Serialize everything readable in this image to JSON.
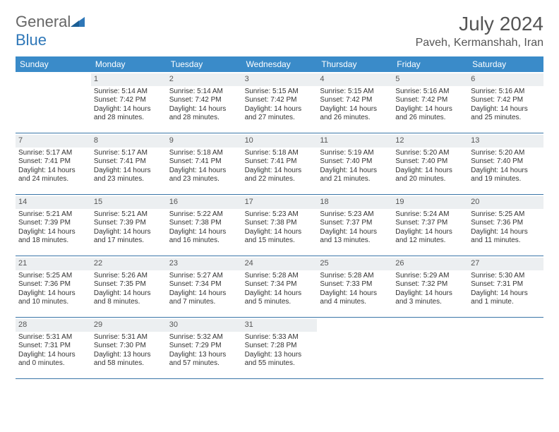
{
  "brand": {
    "part1": "General",
    "part2": "Blue"
  },
  "title": "July 2024",
  "location": "Paveh, Kermanshah, Iran",
  "colors": {
    "header_bg": "#3a8bc9",
    "header_text": "#ffffff",
    "strip_bg": "#eceff1",
    "row_divider": "#3a76a8",
    "text": "#333333",
    "brand_blue": "#2e77b8",
    "brand_gray": "#666666"
  },
  "days_of_week": [
    "Sunday",
    "Monday",
    "Tuesday",
    "Wednesday",
    "Thursday",
    "Friday",
    "Saturday"
  ],
  "weeks": [
    [
      {
        "num": "",
        "sunrise": "",
        "sunset": "",
        "daylight1": "",
        "daylight2": ""
      },
      {
        "num": "1",
        "sunrise": "Sunrise: 5:14 AM",
        "sunset": "Sunset: 7:42 PM",
        "daylight1": "Daylight: 14 hours",
        "daylight2": "and 28 minutes."
      },
      {
        "num": "2",
        "sunrise": "Sunrise: 5:14 AM",
        "sunset": "Sunset: 7:42 PM",
        "daylight1": "Daylight: 14 hours",
        "daylight2": "and 28 minutes."
      },
      {
        "num": "3",
        "sunrise": "Sunrise: 5:15 AM",
        "sunset": "Sunset: 7:42 PM",
        "daylight1": "Daylight: 14 hours",
        "daylight2": "and 27 minutes."
      },
      {
        "num": "4",
        "sunrise": "Sunrise: 5:15 AM",
        "sunset": "Sunset: 7:42 PM",
        "daylight1": "Daylight: 14 hours",
        "daylight2": "and 26 minutes."
      },
      {
        "num": "5",
        "sunrise": "Sunrise: 5:16 AM",
        "sunset": "Sunset: 7:42 PM",
        "daylight1": "Daylight: 14 hours",
        "daylight2": "and 26 minutes."
      },
      {
        "num": "6",
        "sunrise": "Sunrise: 5:16 AM",
        "sunset": "Sunset: 7:42 PM",
        "daylight1": "Daylight: 14 hours",
        "daylight2": "and 25 minutes."
      }
    ],
    [
      {
        "num": "7",
        "sunrise": "Sunrise: 5:17 AM",
        "sunset": "Sunset: 7:41 PM",
        "daylight1": "Daylight: 14 hours",
        "daylight2": "and 24 minutes."
      },
      {
        "num": "8",
        "sunrise": "Sunrise: 5:17 AM",
        "sunset": "Sunset: 7:41 PM",
        "daylight1": "Daylight: 14 hours",
        "daylight2": "and 23 minutes."
      },
      {
        "num": "9",
        "sunrise": "Sunrise: 5:18 AM",
        "sunset": "Sunset: 7:41 PM",
        "daylight1": "Daylight: 14 hours",
        "daylight2": "and 23 minutes."
      },
      {
        "num": "10",
        "sunrise": "Sunrise: 5:18 AM",
        "sunset": "Sunset: 7:41 PM",
        "daylight1": "Daylight: 14 hours",
        "daylight2": "and 22 minutes."
      },
      {
        "num": "11",
        "sunrise": "Sunrise: 5:19 AM",
        "sunset": "Sunset: 7:40 PM",
        "daylight1": "Daylight: 14 hours",
        "daylight2": "and 21 minutes."
      },
      {
        "num": "12",
        "sunrise": "Sunrise: 5:20 AM",
        "sunset": "Sunset: 7:40 PM",
        "daylight1": "Daylight: 14 hours",
        "daylight2": "and 20 minutes."
      },
      {
        "num": "13",
        "sunrise": "Sunrise: 5:20 AM",
        "sunset": "Sunset: 7:40 PM",
        "daylight1": "Daylight: 14 hours",
        "daylight2": "and 19 minutes."
      }
    ],
    [
      {
        "num": "14",
        "sunrise": "Sunrise: 5:21 AM",
        "sunset": "Sunset: 7:39 PM",
        "daylight1": "Daylight: 14 hours",
        "daylight2": "and 18 minutes."
      },
      {
        "num": "15",
        "sunrise": "Sunrise: 5:21 AM",
        "sunset": "Sunset: 7:39 PM",
        "daylight1": "Daylight: 14 hours",
        "daylight2": "and 17 minutes."
      },
      {
        "num": "16",
        "sunrise": "Sunrise: 5:22 AM",
        "sunset": "Sunset: 7:38 PM",
        "daylight1": "Daylight: 14 hours",
        "daylight2": "and 16 minutes."
      },
      {
        "num": "17",
        "sunrise": "Sunrise: 5:23 AM",
        "sunset": "Sunset: 7:38 PM",
        "daylight1": "Daylight: 14 hours",
        "daylight2": "and 15 minutes."
      },
      {
        "num": "18",
        "sunrise": "Sunrise: 5:23 AM",
        "sunset": "Sunset: 7:37 PM",
        "daylight1": "Daylight: 14 hours",
        "daylight2": "and 13 minutes."
      },
      {
        "num": "19",
        "sunrise": "Sunrise: 5:24 AM",
        "sunset": "Sunset: 7:37 PM",
        "daylight1": "Daylight: 14 hours",
        "daylight2": "and 12 minutes."
      },
      {
        "num": "20",
        "sunrise": "Sunrise: 5:25 AM",
        "sunset": "Sunset: 7:36 PM",
        "daylight1": "Daylight: 14 hours",
        "daylight2": "and 11 minutes."
      }
    ],
    [
      {
        "num": "21",
        "sunrise": "Sunrise: 5:25 AM",
        "sunset": "Sunset: 7:36 PM",
        "daylight1": "Daylight: 14 hours",
        "daylight2": "and 10 minutes."
      },
      {
        "num": "22",
        "sunrise": "Sunrise: 5:26 AM",
        "sunset": "Sunset: 7:35 PM",
        "daylight1": "Daylight: 14 hours",
        "daylight2": "and 8 minutes."
      },
      {
        "num": "23",
        "sunrise": "Sunrise: 5:27 AM",
        "sunset": "Sunset: 7:34 PM",
        "daylight1": "Daylight: 14 hours",
        "daylight2": "and 7 minutes."
      },
      {
        "num": "24",
        "sunrise": "Sunrise: 5:28 AM",
        "sunset": "Sunset: 7:34 PM",
        "daylight1": "Daylight: 14 hours",
        "daylight2": "and 5 minutes."
      },
      {
        "num": "25",
        "sunrise": "Sunrise: 5:28 AM",
        "sunset": "Sunset: 7:33 PM",
        "daylight1": "Daylight: 14 hours",
        "daylight2": "and 4 minutes."
      },
      {
        "num": "26",
        "sunrise": "Sunrise: 5:29 AM",
        "sunset": "Sunset: 7:32 PM",
        "daylight1": "Daylight: 14 hours",
        "daylight2": "and 3 minutes."
      },
      {
        "num": "27",
        "sunrise": "Sunrise: 5:30 AM",
        "sunset": "Sunset: 7:31 PM",
        "daylight1": "Daylight: 14 hours",
        "daylight2": "and 1 minute."
      }
    ],
    [
      {
        "num": "28",
        "sunrise": "Sunrise: 5:31 AM",
        "sunset": "Sunset: 7:31 PM",
        "daylight1": "Daylight: 14 hours",
        "daylight2": "and 0 minutes."
      },
      {
        "num": "29",
        "sunrise": "Sunrise: 5:31 AM",
        "sunset": "Sunset: 7:30 PM",
        "daylight1": "Daylight: 13 hours",
        "daylight2": "and 58 minutes."
      },
      {
        "num": "30",
        "sunrise": "Sunrise: 5:32 AM",
        "sunset": "Sunset: 7:29 PM",
        "daylight1": "Daylight: 13 hours",
        "daylight2": "and 57 minutes."
      },
      {
        "num": "31",
        "sunrise": "Sunrise: 5:33 AM",
        "sunset": "Sunset: 7:28 PM",
        "daylight1": "Daylight: 13 hours",
        "daylight2": "and 55 minutes."
      },
      {
        "num": "",
        "sunrise": "",
        "sunset": "",
        "daylight1": "",
        "daylight2": ""
      },
      {
        "num": "",
        "sunrise": "",
        "sunset": "",
        "daylight1": "",
        "daylight2": ""
      },
      {
        "num": "",
        "sunrise": "",
        "sunset": "",
        "daylight1": "",
        "daylight2": ""
      }
    ]
  ]
}
